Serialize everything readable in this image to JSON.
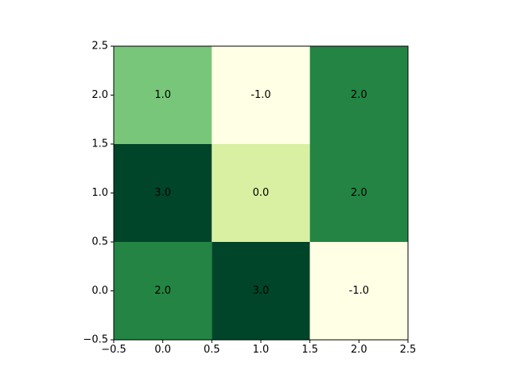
{
  "chart_data": {
    "type": "heatmap",
    "colormap": "YlGn",
    "xlim": [
      -0.5,
      2.5
    ],
    "ylim": [
      -0.5,
      2.5
    ],
    "x_ticks": [
      -0.5,
      0.0,
      0.5,
      1.0,
      1.5,
      2.0,
      2.5
    ],
    "y_ticks": [
      -0.5,
      0.0,
      0.5,
      1.0,
      1.5,
      2.0,
      2.5
    ],
    "x_tick_labels": [
      "−0.5",
      "0.0",
      "0.5",
      "1.0",
      "1.5",
      "2.0",
      "2.5"
    ],
    "y_tick_labels": [
      "−0.5",
      "0.0",
      "0.5",
      "1.0",
      "1.5",
      "2.0",
      "2.5"
    ],
    "rows": [
      {
        "y": 0,
        "values": [
          2.0,
          3.0,
          -1.0
        ],
        "labels": [
          "2.0",
          "3.0",
          "-1.0"
        ]
      },
      {
        "y": 1,
        "values": [
          3.0,
          0.0,
          2.0
        ],
        "labels": [
          "3.0",
          "0.0",
          "2.0"
        ]
      },
      {
        "y": 2,
        "values": [
          1.0,
          -1.0,
          2.0
        ],
        "labels": [
          "1.0",
          "-1.0",
          "2.0"
        ]
      }
    ],
    "value_colors": {
      "-1.0": "#ffffe5",
      "0.0": "#d9f0a3",
      "1.0": "#78c679",
      "2.0": "#238443",
      "3.0": "#004529"
    },
    "title": "",
    "xlabel": "",
    "ylabel": ""
  }
}
